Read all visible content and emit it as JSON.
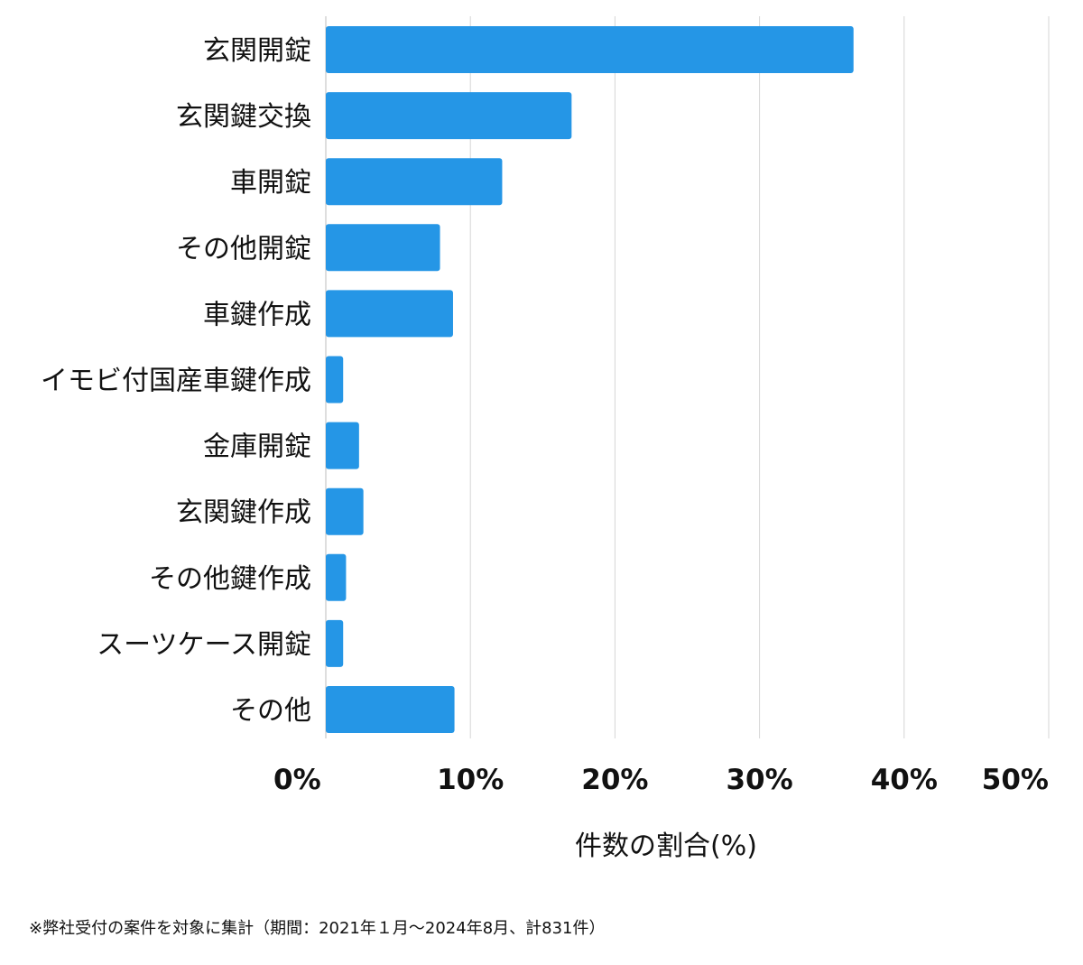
{
  "chart_data": {
    "type": "bar",
    "orientation": "horizontal",
    "categories": [
      "玄関開錠",
      "玄関鍵交換",
      "車開錠",
      "その他開錠",
      "車鍵作成",
      "イモビ付国産車鍵作成",
      "金庫開錠",
      "玄関鍵作成",
      "その他鍵作成",
      "スーツケース開錠",
      "その他"
    ],
    "values": [
      36.5,
      17.0,
      12.2,
      7.9,
      8.8,
      1.2,
      2.3,
      2.6,
      1.4,
      1.2,
      8.9
    ],
    "xlim": [
      0,
      50
    ],
    "xticks": [
      0,
      10,
      20,
      30,
      40,
      50
    ],
    "xtick_labels": [
      "0%",
      "10%",
      "20%",
      "30%",
      "40%",
      "50%"
    ],
    "xlabel": "件数の割合(%)",
    "ylabel": "",
    "title": "",
    "grid": "vertical",
    "bar_color": "#2596e6",
    "grid_color": "#d6d6d6"
  },
  "footnote": "※弊社受付の案件を対象に集計（期間：2021年１月〜2024年8月、計831件）"
}
